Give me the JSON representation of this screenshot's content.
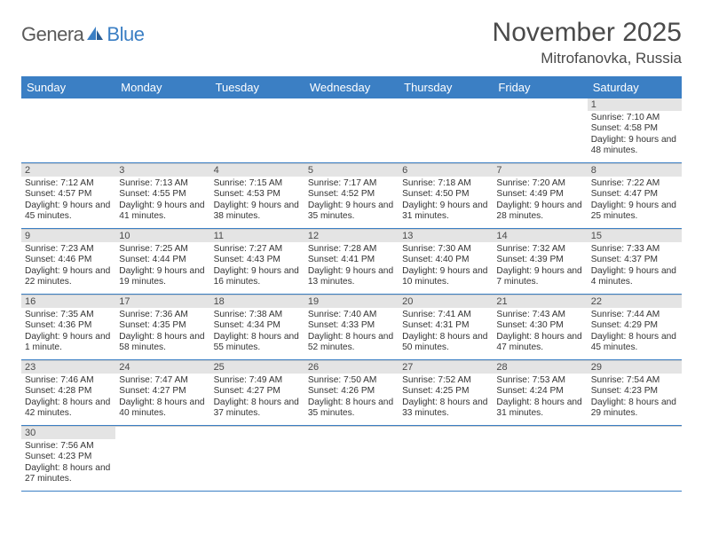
{
  "logo": {
    "part1": "Genera",
    "part2": "Blue"
  },
  "title": "November 2025",
  "location": "Mitrofanovka, Russia",
  "day_names": [
    "Sunday",
    "Monday",
    "Tuesday",
    "Wednesday",
    "Thursday",
    "Friday",
    "Saturday"
  ],
  "colors": {
    "header_bg": "#3b7fc4",
    "header_fg": "#ffffff",
    "num_bg": "#e4e4e4",
    "divider": "#3b7fc4"
  },
  "weeks": [
    [
      null,
      null,
      null,
      null,
      null,
      null,
      {
        "n": "1",
        "sunrise": "Sunrise: 7:10 AM",
        "sunset": "Sunset: 4:58 PM",
        "day": "Daylight: 9 hours and 48 minutes."
      }
    ],
    [
      {
        "n": "2",
        "sunrise": "Sunrise: 7:12 AM",
        "sunset": "Sunset: 4:57 PM",
        "day": "Daylight: 9 hours and 45 minutes."
      },
      {
        "n": "3",
        "sunrise": "Sunrise: 7:13 AM",
        "sunset": "Sunset: 4:55 PM",
        "day": "Daylight: 9 hours and 41 minutes."
      },
      {
        "n": "4",
        "sunrise": "Sunrise: 7:15 AM",
        "sunset": "Sunset: 4:53 PM",
        "day": "Daylight: 9 hours and 38 minutes."
      },
      {
        "n": "5",
        "sunrise": "Sunrise: 7:17 AM",
        "sunset": "Sunset: 4:52 PM",
        "day": "Daylight: 9 hours and 35 minutes."
      },
      {
        "n": "6",
        "sunrise": "Sunrise: 7:18 AM",
        "sunset": "Sunset: 4:50 PM",
        "day": "Daylight: 9 hours and 31 minutes."
      },
      {
        "n": "7",
        "sunrise": "Sunrise: 7:20 AM",
        "sunset": "Sunset: 4:49 PM",
        "day": "Daylight: 9 hours and 28 minutes."
      },
      {
        "n": "8",
        "sunrise": "Sunrise: 7:22 AM",
        "sunset": "Sunset: 4:47 PM",
        "day": "Daylight: 9 hours and 25 minutes."
      }
    ],
    [
      {
        "n": "9",
        "sunrise": "Sunrise: 7:23 AM",
        "sunset": "Sunset: 4:46 PM",
        "day": "Daylight: 9 hours and 22 minutes."
      },
      {
        "n": "10",
        "sunrise": "Sunrise: 7:25 AM",
        "sunset": "Sunset: 4:44 PM",
        "day": "Daylight: 9 hours and 19 minutes."
      },
      {
        "n": "11",
        "sunrise": "Sunrise: 7:27 AM",
        "sunset": "Sunset: 4:43 PM",
        "day": "Daylight: 9 hours and 16 minutes."
      },
      {
        "n": "12",
        "sunrise": "Sunrise: 7:28 AM",
        "sunset": "Sunset: 4:41 PM",
        "day": "Daylight: 9 hours and 13 minutes."
      },
      {
        "n": "13",
        "sunrise": "Sunrise: 7:30 AM",
        "sunset": "Sunset: 4:40 PM",
        "day": "Daylight: 9 hours and 10 minutes."
      },
      {
        "n": "14",
        "sunrise": "Sunrise: 7:32 AM",
        "sunset": "Sunset: 4:39 PM",
        "day": "Daylight: 9 hours and 7 minutes."
      },
      {
        "n": "15",
        "sunrise": "Sunrise: 7:33 AM",
        "sunset": "Sunset: 4:37 PM",
        "day": "Daylight: 9 hours and 4 minutes."
      }
    ],
    [
      {
        "n": "16",
        "sunrise": "Sunrise: 7:35 AM",
        "sunset": "Sunset: 4:36 PM",
        "day": "Daylight: 9 hours and 1 minute."
      },
      {
        "n": "17",
        "sunrise": "Sunrise: 7:36 AM",
        "sunset": "Sunset: 4:35 PM",
        "day": "Daylight: 8 hours and 58 minutes."
      },
      {
        "n": "18",
        "sunrise": "Sunrise: 7:38 AM",
        "sunset": "Sunset: 4:34 PM",
        "day": "Daylight: 8 hours and 55 minutes."
      },
      {
        "n": "19",
        "sunrise": "Sunrise: 7:40 AM",
        "sunset": "Sunset: 4:33 PM",
        "day": "Daylight: 8 hours and 52 minutes."
      },
      {
        "n": "20",
        "sunrise": "Sunrise: 7:41 AM",
        "sunset": "Sunset: 4:31 PM",
        "day": "Daylight: 8 hours and 50 minutes."
      },
      {
        "n": "21",
        "sunrise": "Sunrise: 7:43 AM",
        "sunset": "Sunset: 4:30 PM",
        "day": "Daylight: 8 hours and 47 minutes."
      },
      {
        "n": "22",
        "sunrise": "Sunrise: 7:44 AM",
        "sunset": "Sunset: 4:29 PM",
        "day": "Daylight: 8 hours and 45 minutes."
      }
    ],
    [
      {
        "n": "23",
        "sunrise": "Sunrise: 7:46 AM",
        "sunset": "Sunset: 4:28 PM",
        "day": "Daylight: 8 hours and 42 minutes."
      },
      {
        "n": "24",
        "sunrise": "Sunrise: 7:47 AM",
        "sunset": "Sunset: 4:27 PM",
        "day": "Daylight: 8 hours and 40 minutes."
      },
      {
        "n": "25",
        "sunrise": "Sunrise: 7:49 AM",
        "sunset": "Sunset: 4:27 PM",
        "day": "Daylight: 8 hours and 37 minutes."
      },
      {
        "n": "26",
        "sunrise": "Sunrise: 7:50 AM",
        "sunset": "Sunset: 4:26 PM",
        "day": "Daylight: 8 hours and 35 minutes."
      },
      {
        "n": "27",
        "sunrise": "Sunrise: 7:52 AM",
        "sunset": "Sunset: 4:25 PM",
        "day": "Daylight: 8 hours and 33 minutes."
      },
      {
        "n": "28",
        "sunrise": "Sunrise: 7:53 AM",
        "sunset": "Sunset: 4:24 PM",
        "day": "Daylight: 8 hours and 31 minutes."
      },
      {
        "n": "29",
        "sunrise": "Sunrise: 7:54 AM",
        "sunset": "Sunset: 4:23 PM",
        "day": "Daylight: 8 hours and 29 minutes."
      }
    ],
    [
      {
        "n": "30",
        "sunrise": "Sunrise: 7:56 AM",
        "sunset": "Sunset: 4:23 PM",
        "day": "Daylight: 8 hours and 27 minutes."
      },
      null,
      null,
      null,
      null,
      null,
      null
    ]
  ]
}
